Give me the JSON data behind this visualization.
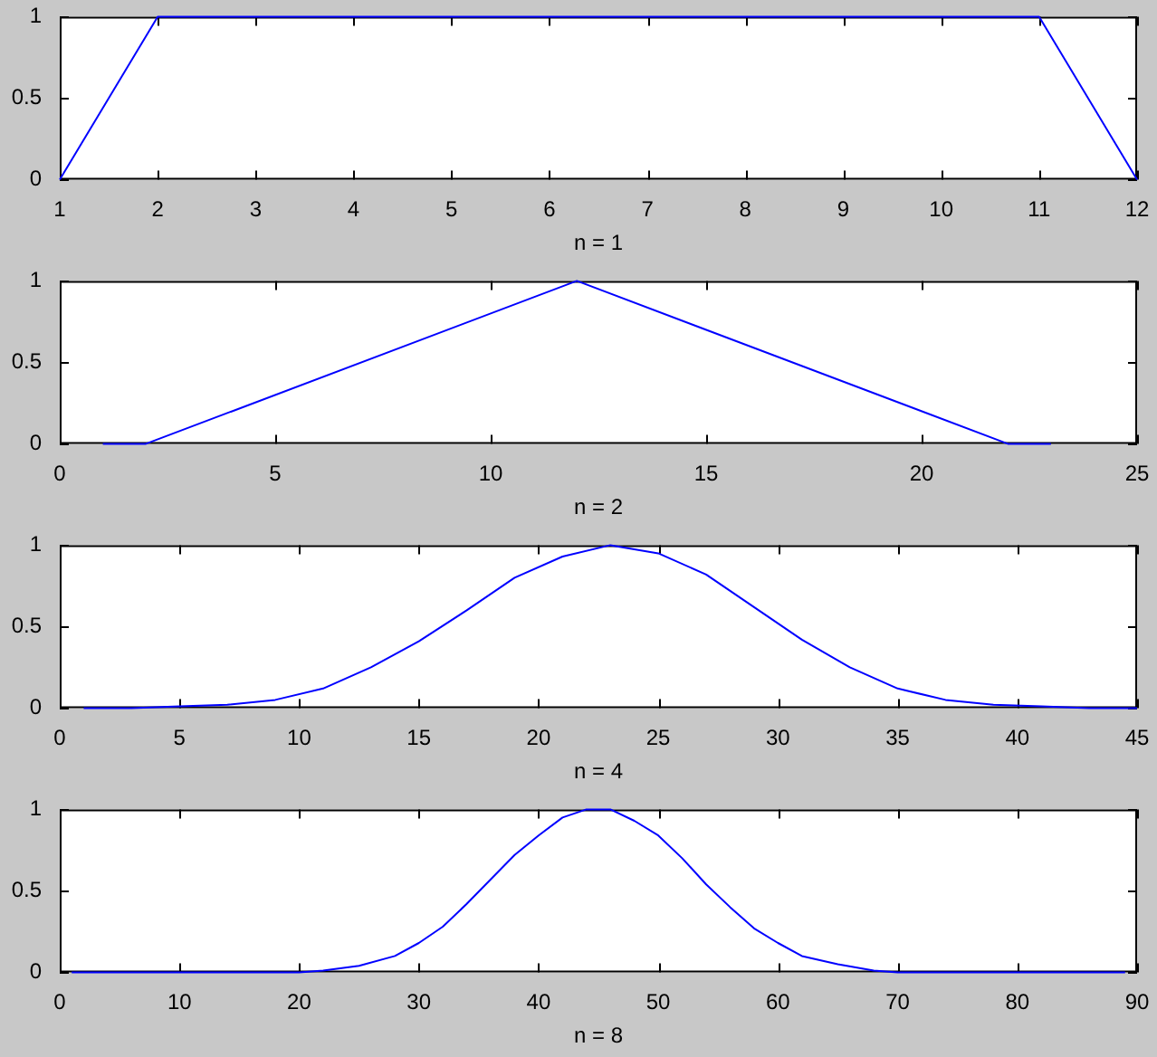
{
  "chart_data": [
    {
      "type": "line",
      "xlabel": "n = 1",
      "x": [
        1,
        2,
        11,
        12
      ],
      "values": [
        0,
        1,
        1,
        0
      ],
      "color": "#0000ff",
      "xlim": [
        1,
        12
      ],
      "xticks": [
        1,
        2,
        3,
        4,
        5,
        6,
        7,
        8,
        9,
        10,
        11,
        12
      ],
      "ylim": [
        0,
        1
      ],
      "yticks": [
        0,
        0.5,
        1
      ]
    },
    {
      "type": "line",
      "xlabel": "n = 2",
      "x": [
        1,
        2,
        12,
        22,
        23
      ],
      "values": [
        0,
        0,
        1,
        0,
        0
      ],
      "color": "#0000ff",
      "xlim": [
        0,
        25
      ],
      "xticks": [
        0,
        5,
        10,
        15,
        20,
        25
      ],
      "ylim": [
        0,
        1
      ],
      "yticks": [
        0,
        0.5,
        1
      ]
    },
    {
      "type": "line",
      "xlabel": "n = 4",
      "x": [
        1,
        3,
        5,
        7,
        9,
        11,
        13,
        15,
        17,
        19,
        21,
        23,
        25,
        27,
        29,
        31,
        33,
        35,
        37,
        39,
        41,
        43,
        45
      ],
      "values": [
        0,
        0,
        0.01,
        0.02,
        0.05,
        0.12,
        0.25,
        0.41,
        0.6,
        0.8,
        0.93,
        1,
        0.95,
        0.82,
        0.62,
        0.42,
        0.25,
        0.12,
        0.05,
        0.02,
        0.01,
        0,
        0
      ],
      "color": "#0000ff",
      "xlim": [
        0,
        45
      ],
      "xticks": [
        0,
        5,
        10,
        15,
        20,
        25,
        30,
        35,
        40,
        45
      ],
      "ylim": [
        0,
        1
      ],
      "yticks": [
        0,
        0.5,
        1
      ]
    },
    {
      "type": "line",
      "xlabel": "n = 8",
      "x": [
        1,
        10,
        20,
        22,
        25,
        28,
        30,
        32,
        34,
        36,
        38,
        40,
        42,
        44,
        46,
        48,
        50,
        52,
        54,
        56,
        58,
        60,
        62,
        65,
        68,
        70,
        80,
        89
      ],
      "values": [
        0,
        0,
        0,
        0.01,
        0.04,
        0.1,
        0.18,
        0.28,
        0.42,
        0.57,
        0.72,
        0.84,
        0.95,
        1,
        1,
        0.93,
        0.84,
        0.7,
        0.54,
        0.4,
        0.27,
        0.18,
        0.1,
        0.05,
        0.01,
        0,
        0,
        0
      ],
      "color": "#0000ff",
      "xlim": [
        0,
        90
      ],
      "xticks": [
        0,
        10,
        20,
        30,
        40,
        50,
        60,
        70,
        80,
        90
      ],
      "ylim": [
        0,
        1
      ],
      "yticks": [
        0,
        0.5,
        1
      ]
    }
  ]
}
